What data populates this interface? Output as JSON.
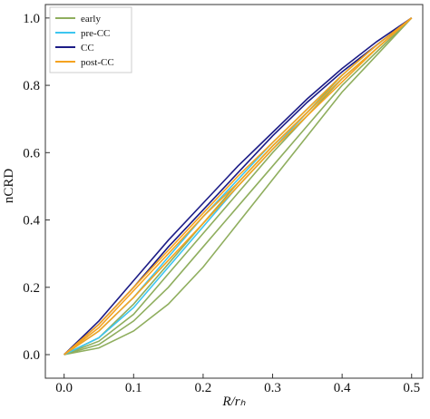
{
  "chart_data": {
    "type": "line",
    "xlabel": "R/rₕ",
    "ylabel": "nCRD",
    "x": [
      0,
      0.05,
      0.1,
      0.15,
      0.2,
      0.25,
      0.3,
      0.35,
      0.4,
      0.45,
      0.5
    ],
    "xlim": [
      -0.027,
      0.516
    ],
    "ylim": [
      -0.07,
      1.04
    ],
    "xticks": [
      {
        "value": 0,
        "label": "0.0"
      },
      0.1,
      0.2,
      0.3,
      0.4,
      0.5
    ],
    "yticks": [
      {
        "value": 0,
        "label": "0.0"
      },
      0.2,
      0.4,
      0.6,
      0.8,
      {
        "value": 1,
        "label": "1.0"
      }
    ],
    "legend": "upper-left",
    "series": [
      {
        "name": "early",
        "color": "#8fae5e",
        "curves": [
          [
            0,
            0.02,
            0.07,
            0.15,
            0.26,
            0.39,
            0.52,
            0.65,
            0.78,
            0.89,
            1
          ],
          [
            0,
            0.03,
            0.1,
            0.2,
            0.32,
            0.44,
            0.56,
            0.68,
            0.8,
            0.9,
            1
          ],
          [
            0,
            0.04,
            0.12,
            0.24,
            0.36,
            0.48,
            0.6,
            0.71,
            0.82,
            0.91,
            1
          ],
          [
            0,
            0.05,
            0.15,
            0.27,
            0.39,
            0.51,
            0.62,
            0.72,
            0.83,
            0.92,
            1
          ]
        ]
      },
      {
        "name": "pre-CC",
        "color": "#3cc6f0",
        "curves": [
          [
            0,
            0.05,
            0.14,
            0.26,
            0.38,
            0.5,
            0.61,
            0.72,
            0.82,
            0.91,
            1
          ],
          [
            0,
            0.07,
            0.17,
            0.29,
            0.41,
            0.52,
            0.63,
            0.73,
            0.83,
            0.92,
            1
          ]
        ]
      },
      {
        "name": "CC",
        "color": "#1c1c86",
        "curves": [
          [
            0,
            0.1,
            0.22,
            0.34,
            0.45,
            0.56,
            0.66,
            0.76,
            0.85,
            0.93,
            1
          ],
          [
            0,
            0.09,
            0.2,
            0.32,
            0.43,
            0.54,
            0.65,
            0.75,
            0.84,
            0.92,
            1
          ]
        ]
      },
      {
        "name": "post-CC",
        "color": "#f5a31f",
        "curves": [
          [
            0,
            0.09,
            0.2,
            0.31,
            0.42,
            0.53,
            0.63,
            0.73,
            0.83,
            0.92,
            1
          ],
          [
            0,
            0.07,
            0.17,
            0.28,
            0.39,
            0.5,
            0.61,
            0.71,
            0.81,
            0.91,
            1
          ],
          [
            0,
            0.08,
            0.19,
            0.3,
            0.41,
            0.51,
            0.62,
            0.72,
            0.82,
            0.91,
            1
          ]
        ]
      }
    ]
  }
}
